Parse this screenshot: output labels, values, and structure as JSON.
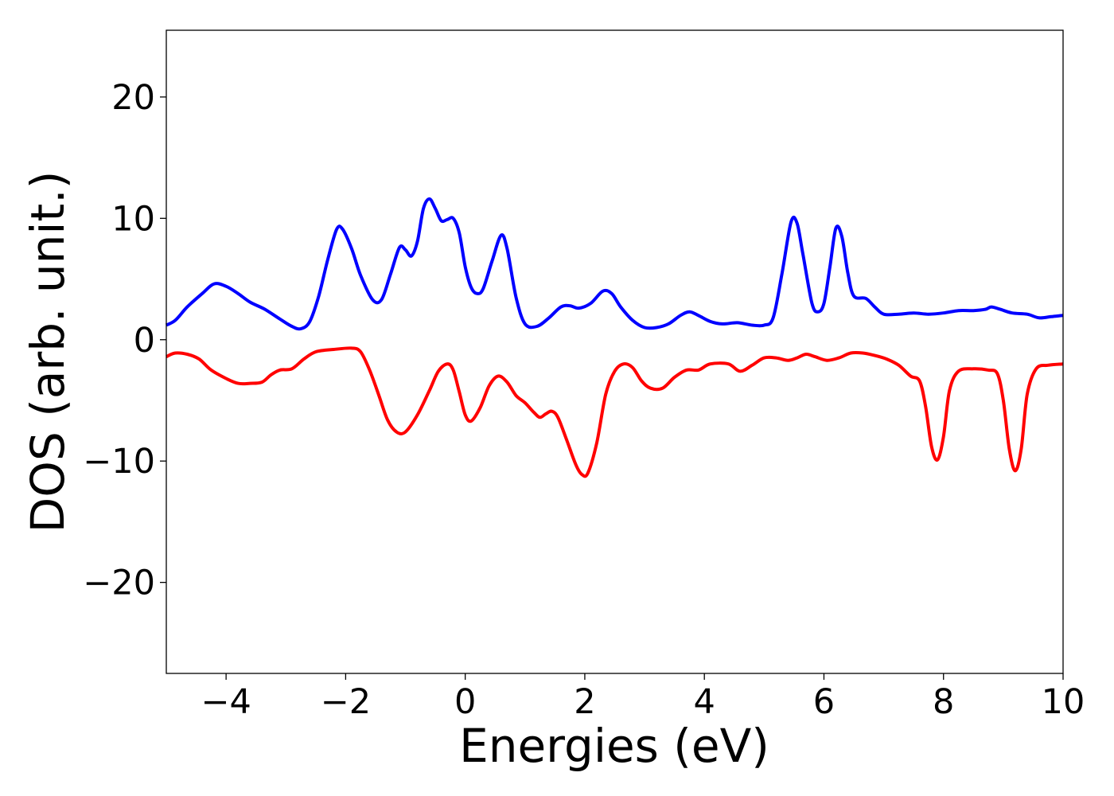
{
  "chart_data": {
    "type": "line",
    "title": "",
    "xlabel": "Energies (eV)",
    "ylabel": "DOS (arb. unit.)",
    "xlim": [
      -5,
      10
    ],
    "ylim": [
      -27.5,
      25.5
    ],
    "xticks": [
      -4,
      -2,
      0,
      2,
      4,
      6,
      8,
      10
    ],
    "xtick_labels": [
      "−4",
      "−2",
      "0",
      "2",
      "4",
      "6",
      "8",
      "10"
    ],
    "yticks": [
      -20,
      -10,
      0,
      10,
      20
    ],
    "ytick_labels": [
      "−20",
      "−10",
      "0",
      "10",
      "20"
    ],
    "grid": false,
    "legend": "none",
    "series": [
      {
        "color": "#0000ff",
        "points": [
          [
            -5.0,
            1.2
          ],
          [
            -4.85,
            1.6
          ],
          [
            -4.65,
            2.7
          ],
          [
            -4.4,
            3.8
          ],
          [
            -4.2,
            4.6
          ],
          [
            -4.0,
            4.4
          ],
          [
            -3.8,
            3.8
          ],
          [
            -3.6,
            3.1
          ],
          [
            -3.35,
            2.5
          ],
          [
            -3.1,
            1.7
          ],
          [
            -2.9,
            1.1
          ],
          [
            -2.75,
            0.9
          ],
          [
            -2.6,
            1.5
          ],
          [
            -2.45,
            3.6
          ],
          [
            -2.3,
            6.6
          ],
          [
            -2.15,
            9.1
          ],
          [
            -2.05,
            9.1
          ],
          [
            -1.9,
            7.5
          ],
          [
            -1.75,
            5.3
          ],
          [
            -1.55,
            3.3
          ],
          [
            -1.4,
            3.3
          ],
          [
            -1.25,
            5.4
          ],
          [
            -1.1,
            7.6
          ],
          [
            -1.0,
            7.4
          ],
          [
            -0.9,
            6.9
          ],
          [
            -0.8,
            8.1
          ],
          [
            -0.7,
            10.8
          ],
          [
            -0.6,
            11.6
          ],
          [
            -0.5,
            10.8
          ],
          [
            -0.4,
            9.8
          ],
          [
            -0.3,
            9.9
          ],
          [
            -0.2,
            10.0
          ],
          [
            -0.1,
            8.8
          ],
          [
            0.0,
            6.0
          ],
          [
            0.1,
            4.3
          ],
          [
            0.2,
            3.8
          ],
          [
            0.3,
            4.2
          ],
          [
            0.45,
            6.5
          ],
          [
            0.6,
            8.6
          ],
          [
            0.7,
            7.5
          ],
          [
            0.85,
            3.5
          ],
          [
            1.0,
            1.3
          ],
          [
            1.2,
            1.1
          ],
          [
            1.4,
            1.8
          ],
          [
            1.6,
            2.7
          ],
          [
            1.75,
            2.8
          ],
          [
            1.9,
            2.6
          ],
          [
            2.1,
            3.0
          ],
          [
            2.3,
            4.0
          ],
          [
            2.45,
            3.8
          ],
          [
            2.6,
            2.7
          ],
          [
            2.8,
            1.6
          ],
          [
            3.0,
            1.0
          ],
          [
            3.2,
            1.0
          ],
          [
            3.4,
            1.3
          ],
          [
            3.6,
            2.0
          ],
          [
            3.75,
            2.3
          ],
          [
            3.9,
            2.0
          ],
          [
            4.1,
            1.5
          ],
          [
            4.3,
            1.3
          ],
          [
            4.55,
            1.4
          ],
          [
            4.8,
            1.2
          ],
          [
            5.0,
            1.2
          ],
          [
            5.15,
            1.8
          ],
          [
            5.3,
            5.5
          ],
          [
            5.45,
            9.7
          ],
          [
            5.55,
            9.6
          ],
          [
            5.65,
            7.0
          ],
          [
            5.8,
            3.0
          ],
          [
            5.9,
            2.3
          ],
          [
            6.0,
            3.0
          ],
          [
            6.1,
            6.0
          ],
          [
            6.2,
            9.2
          ],
          [
            6.3,
            8.5
          ],
          [
            6.4,
            5.5
          ],
          [
            6.5,
            3.6
          ],
          [
            6.7,
            3.4
          ],
          [
            6.85,
            2.7
          ],
          [
            7.0,
            2.1
          ],
          [
            7.25,
            2.1
          ],
          [
            7.5,
            2.2
          ],
          [
            7.75,
            2.1
          ],
          [
            8.0,
            2.2
          ],
          [
            8.25,
            2.4
          ],
          [
            8.5,
            2.4
          ],
          [
            8.7,
            2.5
          ],
          [
            8.8,
            2.7
          ],
          [
            8.95,
            2.5
          ],
          [
            9.15,
            2.2
          ],
          [
            9.4,
            2.1
          ],
          [
            9.6,
            1.8
          ],
          [
            9.8,
            1.9
          ],
          [
            10.0,
            2.0
          ]
        ]
      },
      {
        "color": "#ff0000",
        "points": [
          [
            -5.0,
            -1.4
          ],
          [
            -4.85,
            -1.1
          ],
          [
            -4.65,
            -1.2
          ],
          [
            -4.45,
            -1.6
          ],
          [
            -4.25,
            -2.5
          ],
          [
            -4.0,
            -3.2
          ],
          [
            -3.8,
            -3.6
          ],
          [
            -3.6,
            -3.6
          ],
          [
            -3.4,
            -3.5
          ],
          [
            -3.25,
            -2.9
          ],
          [
            -3.1,
            -2.5
          ],
          [
            -2.9,
            -2.4
          ],
          [
            -2.7,
            -1.6
          ],
          [
            -2.5,
            -1.0
          ],
          [
            -2.2,
            -0.8
          ],
          [
            -1.9,
            -0.7
          ],
          [
            -1.75,
            -1.0
          ],
          [
            -1.6,
            -2.5
          ],
          [
            -1.45,
            -4.5
          ],
          [
            -1.3,
            -6.6
          ],
          [
            -1.15,
            -7.6
          ],
          [
            -1.0,
            -7.6
          ],
          [
            -0.8,
            -6.2
          ],
          [
            -0.6,
            -4.2
          ],
          [
            -0.45,
            -2.6
          ],
          [
            -0.3,
            -2.0
          ],
          [
            -0.2,
            -2.5
          ],
          [
            -0.1,
            -4.3
          ],
          [
            0.0,
            -6.2
          ],
          [
            0.1,
            -6.7
          ],
          [
            0.25,
            -5.6
          ],
          [
            0.4,
            -3.8
          ],
          [
            0.55,
            -3.0
          ],
          [
            0.7,
            -3.5
          ],
          [
            0.85,
            -4.6
          ],
          [
            1.0,
            -5.2
          ],
          [
            1.15,
            -6.0
          ],
          [
            1.25,
            -6.4
          ],
          [
            1.35,
            -6.1
          ],
          [
            1.45,
            -5.9
          ],
          [
            1.55,
            -6.4
          ],
          [
            1.7,
            -8.3
          ],
          [
            1.85,
            -10.3
          ],
          [
            1.95,
            -11.1
          ],
          [
            2.05,
            -11.0
          ],
          [
            2.2,
            -8.5
          ],
          [
            2.35,
            -4.5
          ],
          [
            2.5,
            -2.6
          ],
          [
            2.65,
            -2.0
          ],
          [
            2.8,
            -2.3
          ],
          [
            2.95,
            -3.4
          ],
          [
            3.1,
            -4.0
          ],
          [
            3.3,
            -4.0
          ],
          [
            3.5,
            -3.1
          ],
          [
            3.7,
            -2.5
          ],
          [
            3.9,
            -2.5
          ],
          [
            4.1,
            -2.0
          ],
          [
            4.4,
            -2.0
          ],
          [
            4.6,
            -2.6
          ],
          [
            4.8,
            -2.1
          ],
          [
            5.0,
            -1.5
          ],
          [
            5.2,
            -1.5
          ],
          [
            5.4,
            -1.7
          ],
          [
            5.55,
            -1.5
          ],
          [
            5.7,
            -1.2
          ],
          [
            5.85,
            -1.4
          ],
          [
            6.05,
            -1.7
          ],
          [
            6.25,
            -1.5
          ],
          [
            6.45,
            -1.1
          ],
          [
            6.65,
            -1.1
          ],
          [
            6.85,
            -1.3
          ],
          [
            7.05,
            -1.6
          ],
          [
            7.25,
            -2.1
          ],
          [
            7.45,
            -3.0
          ],
          [
            7.6,
            -3.4
          ],
          [
            7.7,
            -5.5
          ],
          [
            7.8,
            -8.8
          ],
          [
            7.9,
            -9.9
          ],
          [
            8.0,
            -8.0
          ],
          [
            8.1,
            -4.2
          ],
          [
            8.25,
            -2.6
          ],
          [
            8.5,
            -2.4
          ],
          [
            8.75,
            -2.5
          ],
          [
            8.9,
            -2.8
          ],
          [
            9.0,
            -5.0
          ],
          [
            9.1,
            -9.0
          ],
          [
            9.2,
            -10.8
          ],
          [
            9.3,
            -9.0
          ],
          [
            9.4,
            -4.5
          ],
          [
            9.55,
            -2.4
          ],
          [
            9.75,
            -2.1
          ],
          [
            10.0,
            -2.0
          ]
        ]
      }
    ]
  }
}
